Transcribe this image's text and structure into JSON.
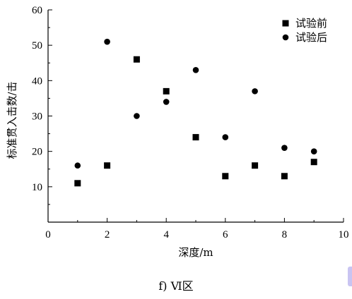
{
  "chart_data": {
    "type": "scatter",
    "xlabel": "深度/m",
    "ylabel": "标准贯入击数/击",
    "xlim": [
      0,
      10
    ],
    "ylim": [
      0,
      60
    ],
    "xticks": [
      0,
      2,
      4,
      6,
      8,
      10
    ],
    "yticks": [
      10,
      20,
      30,
      40,
      50,
      60
    ],
    "grid": false,
    "legend_position": "top-right",
    "series": [
      {
        "name": "试验前",
        "marker": "square",
        "color": "#000000",
        "x": [
          1,
          2,
          3,
          4,
          5,
          6,
          7,
          8,
          9
        ],
        "y": [
          11,
          16,
          46,
          37,
          24,
          13,
          16,
          13,
          17
        ]
      },
      {
        "name": "试验后",
        "marker": "circle",
        "color": "#000000",
        "x": [
          1,
          2,
          3,
          4,
          5,
          6,
          7,
          8,
          9
        ],
        "y": [
          16,
          51,
          30,
          34,
          43,
          24,
          37,
          21,
          20
        ]
      }
    ]
  },
  "caption": "f) Ⅵ区"
}
